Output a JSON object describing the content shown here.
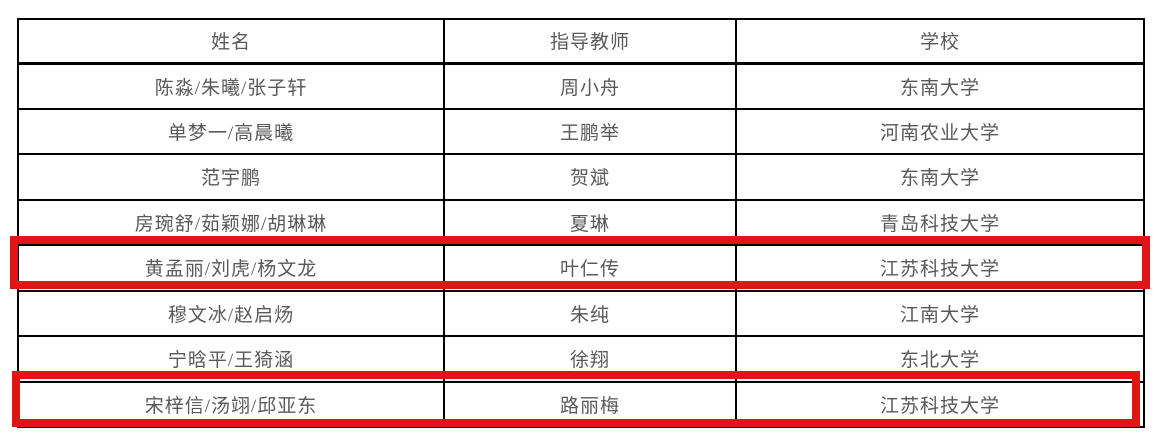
{
  "page": {
    "background": "#ffffff",
    "description": "document-table-with-red-annotations"
  },
  "highlight": {
    "color": "#e11515",
    "style": "red-rectangle-outline",
    "highlighted_row_numbers": [
      5,
      8
    ]
  },
  "table": {
    "text_color": "#595959",
    "border_color": "#000000",
    "columns": [
      {
        "key": "name",
        "label": "姓名"
      },
      {
        "key": "teacher",
        "label": "指导教师"
      },
      {
        "key": "school",
        "label": "学校"
      }
    ],
    "rows": [
      {
        "name": "陈淼/朱曦/张子轩",
        "teacher": "周小舟",
        "school": "东南大学",
        "highlighted": false
      },
      {
        "name": "单梦一/高晨曦",
        "teacher": "王鹏举",
        "school": "河南农业大学",
        "highlighted": false
      },
      {
        "name": "范宇鹏",
        "teacher": "贺斌",
        "school": "东南大学",
        "highlighted": false
      },
      {
        "name": "房琬舒/茹颖娜/胡琳琳",
        "teacher": "夏琳",
        "school": "青岛科技大学",
        "highlighted": false
      },
      {
        "name": "黄孟丽/刘虎/杨文龙",
        "teacher": "叶仁传",
        "school": "江苏科技大学",
        "highlighted": true
      },
      {
        "name": "穆文冰/赵启炀",
        "teacher": "朱纯",
        "school": "江南大学",
        "highlighted": false
      },
      {
        "name": "宁晗平/王猗涵",
        "teacher": "徐翔",
        "school": "东北大学",
        "highlighted": false
      },
      {
        "name": "宋梓信/汤翊/邱亚东",
        "teacher": "路丽梅",
        "school": "江苏科技大学",
        "highlighted": true
      }
    ]
  }
}
